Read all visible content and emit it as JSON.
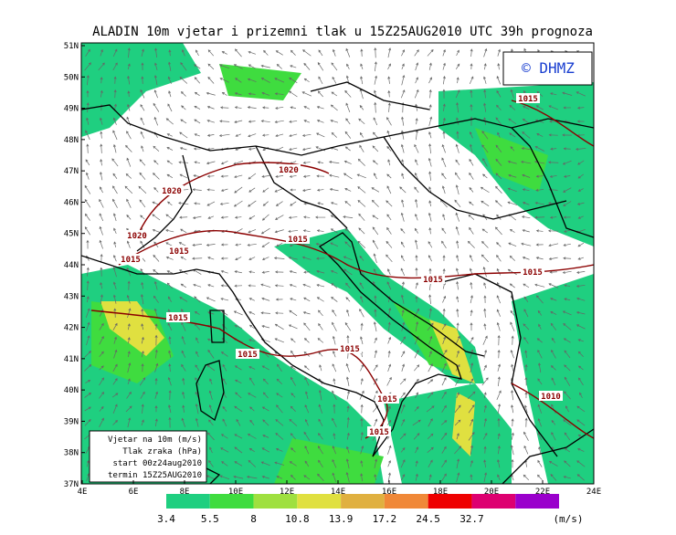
{
  "title": "ALADIN 10m vjetar i prizemni tlak u 15Z25AUG2010 UTC 39h prognoza",
  "copyright": "© DHMZ",
  "lat_labels": [
    "51N",
    "50N",
    "49N",
    "48N",
    "47N",
    "46N",
    "45N",
    "44N",
    "43N",
    "42N",
    "41N",
    "40N",
    "39N",
    "38N",
    "37N"
  ],
  "lon_labels": [
    "4E",
    "6E",
    "8E",
    "10E",
    "12E",
    "14E",
    "16E",
    "18E",
    "20E",
    "22E",
    "24E"
  ],
  "info_box": [
    "Vjetar na 10m (m/s)",
    "Tlak zraka (hPa)",
    "start 00z24aug2010",
    "termin 15Z25AUG2010"
  ],
  "isobar_labels": [
    "1015",
    "1020",
    "1020",
    "1020",
    "1015",
    "1015",
    "1015",
    "1015",
    "1015",
    "1015",
    "1015",
    "1015",
    "1015",
    "1015",
    "1010"
  ],
  "legend": {
    "labels": [
      "3.4",
      "5.5",
      "8",
      "10.8",
      "13.9",
      "17.2",
      "24.5",
      "32.7"
    ],
    "unit": "(m/s)",
    "colors": [
      "#1fcf80",
      "#3fdc3f",
      "#9fe03f",
      "#e0e040",
      "#e0b040",
      "#f08838",
      "#ee0000",
      "#dd0070",
      "#9a00cc"
    ]
  }
}
